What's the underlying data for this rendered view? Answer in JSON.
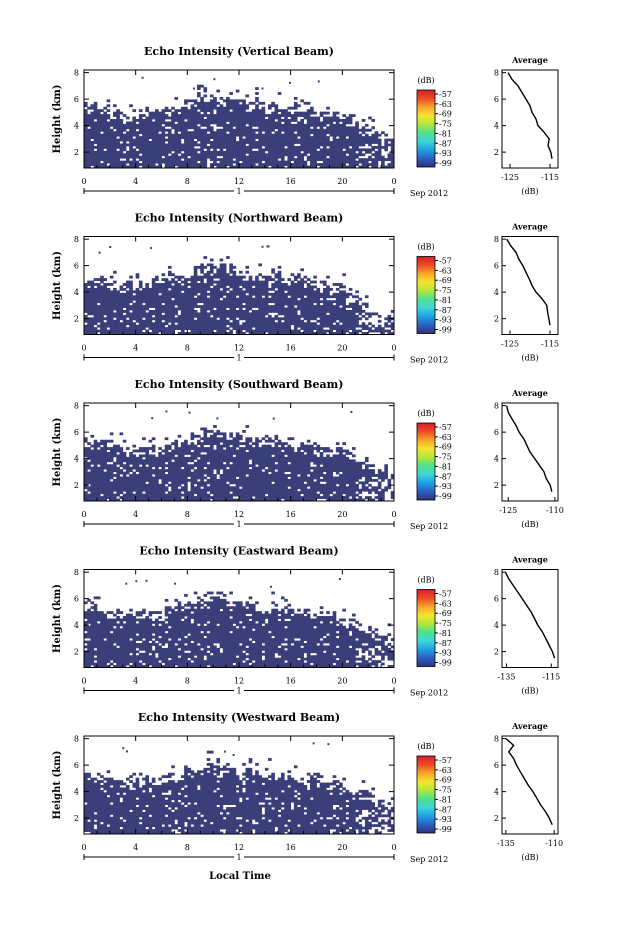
{
  "figure": {
    "x_axis_label": "Local Time",
    "date_label": "Sep 2012",
    "day_label": "1",
    "colorbar_title": "(dB)",
    "average_title": "Average",
    "average_xlabel": "(dB)"
  },
  "colors": {
    "background_cell": "#ffffff",
    "dominant_echo": "#3a3f7a",
    "colorbar_stops": [
      "#31337c",
      "#2b5fbf",
      "#1ea0e6",
      "#3fd6d6",
      "#4ee08c",
      "#b2e63c",
      "#f5e52e",
      "#f7a52a",
      "#ee4a26",
      "#d6202a"
    ]
  },
  "chart_data": [
    {
      "type": "heatmap",
      "title": "Echo Intensity (Vertical Beam)",
      "ylabel": "Height (km)",
      "x_ticks": [
        "0",
        "4",
        "8",
        "12",
        "16",
        "20",
        "0"
      ],
      "y_ticks": [
        "2",
        "4",
        "6",
        "8"
      ],
      "xlim": [
        0,
        24
      ],
      "ylim": [
        0.8,
        8.2
      ],
      "colorbar": {
        "ticks": [
          "-57",
          "-63",
          "-69",
          "-75",
          "-81",
          "-87",
          "-93",
          "-99"
        ],
        "range": [
          -99,
          -57
        ]
      },
      "dominant_level_db": -99,
      "echo_top_km": [
        {
          "x": 0,
          "y": 5.5
        },
        {
          "x": 2,
          "y": 5.0
        },
        {
          "x": 4,
          "y": 4.6
        },
        {
          "x": 6,
          "y": 5.1
        },
        {
          "x": 8,
          "y": 5.6
        },
        {
          "x": 10,
          "y": 6.1
        },
        {
          "x": 12,
          "y": 5.8
        },
        {
          "x": 14,
          "y": 5.5
        },
        {
          "x": 16,
          "y": 5.2
        },
        {
          "x": 18,
          "y": 4.9
        },
        {
          "x": 20,
          "y": 4.6
        },
        {
          "x": 22,
          "y": 3.6
        },
        {
          "x": 24,
          "y": 2.8
        }
      ],
      "average": {
        "x_ticks": [
          "-125",
          "-115"
        ],
        "xlim": [
          -127,
          -113
        ],
        "y": [
          1.5,
          2.0,
          2.5,
          3.0,
          3.5,
          4.0,
          4.5,
          5.0,
          5.5,
          6.0,
          6.5,
          7.0,
          7.5,
          8.0
        ],
        "x": [
          -114.5,
          -114.8,
          -115.5,
          -115.2,
          -116.5,
          -118.0,
          -118.5,
          -119.5,
          -120.0,
          -121.0,
          -122.0,
          -123.0,
          -124.5,
          -125.5
        ]
      }
    },
    {
      "type": "heatmap",
      "title": "Echo Intensity (Northward Beam)",
      "ylabel": "Height (km)",
      "x_ticks": [
        "0",
        "4",
        "8",
        "12",
        "16",
        "20",
        "0"
      ],
      "y_ticks": [
        "2",
        "4",
        "6",
        "8"
      ],
      "xlim": [
        0,
        24
      ],
      "ylim": [
        0.8,
        8.2
      ],
      "colorbar": {
        "ticks": [
          "-57",
          "-63",
          "-69",
          "-75",
          "-81",
          "-87",
          "-93",
          "-99"
        ],
        "range": [
          -99,
          -57
        ]
      },
      "dominant_level_db": -99,
      "echo_top_km": [
        {
          "x": 0,
          "y": 4.8
        },
        {
          "x": 2,
          "y": 4.6
        },
        {
          "x": 4,
          "y": 4.3
        },
        {
          "x": 6,
          "y": 4.9
        },
        {
          "x": 8,
          "y": 5.3
        },
        {
          "x": 10,
          "y": 6.0
        },
        {
          "x": 12,
          "y": 5.6
        },
        {
          "x": 14,
          "y": 5.2
        },
        {
          "x": 16,
          "y": 5.0
        },
        {
          "x": 18,
          "y": 4.5
        },
        {
          "x": 20,
          "y": 4.2
        },
        {
          "x": 22,
          "y": 2.8
        },
        {
          "x": 24,
          "y": 2.0
        }
      ],
      "average": {
        "x_ticks": [
          "-125",
          "-115"
        ],
        "xlim": [
          -127,
          -113
        ],
        "y": [
          1.5,
          2.0,
          2.5,
          3.0,
          3.5,
          4.0,
          4.5,
          5.0,
          5.5,
          6.0,
          6.5,
          7.0,
          7.5,
          8.0
        ],
        "x": [
          -115.0,
          -115.3,
          -115.6,
          -115.8,
          -117.0,
          -118.5,
          -119.5,
          -120.2,
          -121.0,
          -121.8,
          -122.8,
          -123.5,
          -124.8,
          -125.8
        ]
      }
    },
    {
      "type": "heatmap",
      "title": "Echo Intensity (Southward Beam)",
      "ylabel": "Height (km)",
      "x_ticks": [
        "0",
        "4",
        "8",
        "12",
        "16",
        "20",
        "0"
      ],
      "y_ticks": [
        "2",
        "4",
        "6",
        "8"
      ],
      "xlim": [
        0,
        24
      ],
      "ylim": [
        0.8,
        8.2
      ],
      "colorbar": {
        "ticks": [
          "-57",
          "-63",
          "-69",
          "-75",
          "-81",
          "-87",
          "-93",
          "-99"
        ],
        "range": [
          -99,
          -57
        ]
      },
      "dominant_level_db": -99,
      "echo_top_km": [
        {
          "x": 0,
          "y": 5.2
        },
        {
          "x": 2,
          "y": 4.9
        },
        {
          "x": 4,
          "y": 4.6
        },
        {
          "x": 6,
          "y": 4.8
        },
        {
          "x": 8,
          "y": 5.3
        },
        {
          "x": 10,
          "y": 6.2
        },
        {
          "x": 12,
          "y": 5.6
        },
        {
          "x": 14,
          "y": 5.3
        },
        {
          "x": 16,
          "y": 5.1
        },
        {
          "x": 18,
          "y": 4.9
        },
        {
          "x": 20,
          "y": 4.5
        },
        {
          "x": 22,
          "y": 3.6
        },
        {
          "x": 24,
          "y": 2.6
        }
      ],
      "average": {
        "x_ticks": [
          "-125",
          "-110"
        ],
        "xlim": [
          -127,
          -109
        ],
        "y": [
          1.5,
          2.0,
          2.5,
          3.0,
          3.5,
          4.0,
          4.5,
          5.0,
          5.5,
          6.0,
          6.5,
          7.0,
          7.5,
          8.0
        ],
        "x": [
          -111.0,
          -111.5,
          -112.8,
          -113.5,
          -115.0,
          -116.5,
          -118.0,
          -119.0,
          -120.0,
          -121.5,
          -122.5,
          -123.8,
          -125.0,
          -125.5
        ]
      }
    },
    {
      "type": "heatmap",
      "title": "Echo Intensity (Eastward Beam)",
      "ylabel": "Height (km)",
      "x_ticks": [
        "0",
        "4",
        "8",
        "12",
        "16",
        "20",
        "0"
      ],
      "y_ticks": [
        "2",
        "4",
        "6",
        "8"
      ],
      "xlim": [
        0,
        24
      ],
      "ylim": [
        0.8,
        8.2
      ],
      "colorbar": {
        "ticks": [
          "-57",
          "-63",
          "-69",
          "-75",
          "-81",
          "-87",
          "-93",
          "-99"
        ],
        "range": [
          -99,
          -57
        ]
      },
      "dominant_level_db": -99,
      "echo_top_km": [
        {
          "x": 0,
          "y": 5.4
        },
        {
          "x": 2,
          "y": 5.0
        },
        {
          "x": 4,
          "y": 4.7
        },
        {
          "x": 6,
          "y": 5.0
        },
        {
          "x": 8,
          "y": 5.5
        },
        {
          "x": 10,
          "y": 6.1
        },
        {
          "x": 12,
          "y": 5.7
        },
        {
          "x": 14,
          "y": 5.4
        },
        {
          "x": 16,
          "y": 5.1
        },
        {
          "x": 18,
          "y": 4.8
        },
        {
          "x": 20,
          "y": 4.4
        },
        {
          "x": 22,
          "y": 3.5
        },
        {
          "x": 24,
          "y": 2.7
        }
      ],
      "average": {
        "x_ticks": [
          "-135",
          "-115"
        ],
        "xlim": [
          -137,
          -112
        ],
        "y": [
          1.5,
          2.0,
          2.5,
          3.0,
          3.5,
          4.0,
          4.5,
          5.0,
          5.5,
          6.0,
          6.5,
          7.0,
          7.5,
          8.0
        ],
        "x": [
          -113.5,
          -114.5,
          -116.0,
          -117.5,
          -119.0,
          -121.0,
          -122.5,
          -124.0,
          -126.0,
          -128.0,
          -130.0,
          -132.0,
          -134.0,
          -135.5
        ]
      }
    },
    {
      "type": "heatmap",
      "title": "Echo Intensity (Westward Beam)",
      "ylabel": "Height (km)",
      "x_ticks": [
        "0",
        "4",
        "8",
        "12",
        "16",
        "20",
        "0"
      ],
      "y_ticks": [
        "2",
        "4",
        "6",
        "8"
      ],
      "xlim": [
        0,
        24
      ],
      "ylim": [
        0.8,
        8.2
      ],
      "colorbar": {
        "ticks": [
          "-57",
          "-63",
          "-69",
          "-75",
          "-81",
          "-87",
          "-93",
          "-99"
        ],
        "range": [
          -99,
          -57
        ]
      },
      "dominant_level_db": -99,
      "echo_top_km": [
        {
          "x": 0,
          "y": 5.3
        },
        {
          "x": 2,
          "y": 4.9
        },
        {
          "x": 4,
          "y": 4.6
        },
        {
          "x": 6,
          "y": 4.9
        },
        {
          "x": 8,
          "y": 5.4
        },
        {
          "x": 10,
          "y": 6.0
        },
        {
          "x": 12,
          "y": 5.6
        },
        {
          "x": 14,
          "y": 5.3
        },
        {
          "x": 16,
          "y": 5.0
        },
        {
          "x": 18,
          "y": 4.8
        },
        {
          "x": 20,
          "y": 4.3
        },
        {
          "x": 22,
          "y": 3.4
        },
        {
          "x": 24,
          "y": 2.7
        }
      ],
      "average": {
        "x_ticks": [
          "-135",
          "-110"
        ],
        "xlim": [
          -137,
          -108
        ],
        "y": [
          1.5,
          2.0,
          2.5,
          3.0,
          3.5,
          4.0,
          4.5,
          5.0,
          5.5,
          6.0,
          6.5,
          7.0,
          7.5,
          8.0
        ],
        "x": [
          -111.0,
          -112.5,
          -114.5,
          -117.0,
          -119.0,
          -121.0,
          -123.5,
          -125.5,
          -127.5,
          -129.5,
          -131.0,
          -133.5,
          -131.0,
          -135.0
        ]
      }
    }
  ]
}
